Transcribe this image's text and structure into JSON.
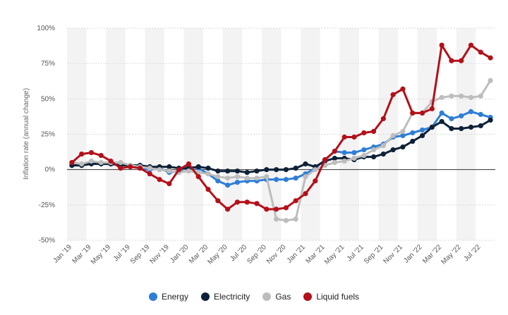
{
  "chart_data": {
    "type": "line",
    "xlabel": "",
    "ylabel": "Inflation rate (annual change)",
    "ylim": [
      -50,
      100
    ],
    "yticks": [
      -50,
      -25,
      0,
      25,
      50,
      75,
      100
    ],
    "ytick_labels": [
      "-50%",
      "-25%",
      "0%",
      "25%",
      "50%",
      "75%",
      "100%"
    ],
    "grid": true,
    "legend_position": "bottom",
    "categories": [
      "Jan '19",
      "Feb '19",
      "Mar '19",
      "Apr '19",
      "May '19",
      "Jun '19",
      "Jul '19",
      "Aug '19",
      "Sep '19",
      "Oct '19",
      "Nov '19",
      "Dec '19",
      "Jan '20",
      "Feb '20",
      "Mar '20",
      "Apr '20",
      "May '20",
      "Jun '20",
      "Jul '20",
      "Aug '20",
      "Sep '20",
      "Oct '20",
      "Nov '20",
      "Dec '20",
      "Jan '21",
      "Feb '21",
      "Mar '21",
      "Apr '21",
      "May '21",
      "Jun '21",
      "Jul '21",
      "Aug '21",
      "Sep '21",
      "Oct '21",
      "Nov '21",
      "Dec '21",
      "Jan '22",
      "Feb '22",
      "Mar '22",
      "Apr '22",
      "May '22",
      "Jun '22",
      "Jul '22",
      "Aug '22"
    ],
    "xtick_labels": [
      "Jan '19",
      "Mar '19",
      "May '19",
      "Jul '19",
      "Sep '19",
      "Nov '19",
      "Jan '20",
      "Mar '20",
      "May '20",
      "Jul '20",
      "Sep '20",
      "Nov '20",
      "Jan '21",
      "Mar '21",
      "May '21",
      "Jul '21",
      "Sep '21",
      "Nov '21",
      "Jan '22",
      "Mar '22",
      "May '22",
      "Jul '22"
    ],
    "series": [
      {
        "name": "Energy",
        "color": "#2e7ed6",
        "values": [
          3,
          3,
          5,
          4,
          4,
          4,
          2,
          1,
          0,
          1,
          -2,
          -1,
          2,
          1,
          -3,
          -8,
          -11,
          -9,
          -8,
          -8,
          -7,
          -7,
          -7,
          -6,
          -3,
          1,
          7,
          13,
          12,
          12,
          14,
          16,
          18,
          23,
          24,
          26,
          28,
          30,
          40,
          36,
          38,
          41,
          39,
          37
        ]
      },
      {
        "name": "Electricity",
        "color": "#0d2137",
        "values": [
          3,
          3,
          4,
          4,
          4,
          3,
          3,
          3,
          2,
          2,
          2,
          1,
          1,
          2,
          1,
          -1,
          -1,
          -1,
          -2,
          -1,
          0,
          0,
          0,
          1,
          4,
          2,
          6,
          8,
          8,
          7,
          9,
          9,
          11,
          14,
          16,
          20,
          24,
          30,
          34,
          29,
          29,
          30,
          31,
          35
        ]
      },
      {
        "name": "Gas",
        "color": "#bdbdbd",
        "values": [
          5,
          4,
          6,
          5,
          5,
          5,
          3,
          2,
          1,
          0,
          -1,
          -2,
          -1,
          -2,
          -3,
          -5,
          -6,
          -5,
          -6,
          -6,
          -5,
          -35,
          -36,
          -35,
          -5,
          0,
          3,
          5,
          6,
          8,
          10,
          14,
          17,
          24,
          27,
          40,
          40,
          48,
          51,
          52,
          52,
          51,
          52,
          63
        ]
      },
      {
        "name": "Liquid fuels",
        "color": "#b3101a",
        "values": [
          5,
          11,
          12,
          10,
          6,
          1,
          2,
          1,
          -3,
          -7,
          -10,
          0,
          4,
          -5,
          -14,
          -22,
          -28,
          -23,
          -23,
          -24,
          -28,
          -28,
          -27,
          -22,
          -17,
          -8,
          7,
          13,
          23,
          23,
          26,
          27,
          36,
          53,
          57,
          40,
          40,
          43,
          88,
          77,
          77,
          88,
          83,
          79
        ]
      }
    ]
  }
}
